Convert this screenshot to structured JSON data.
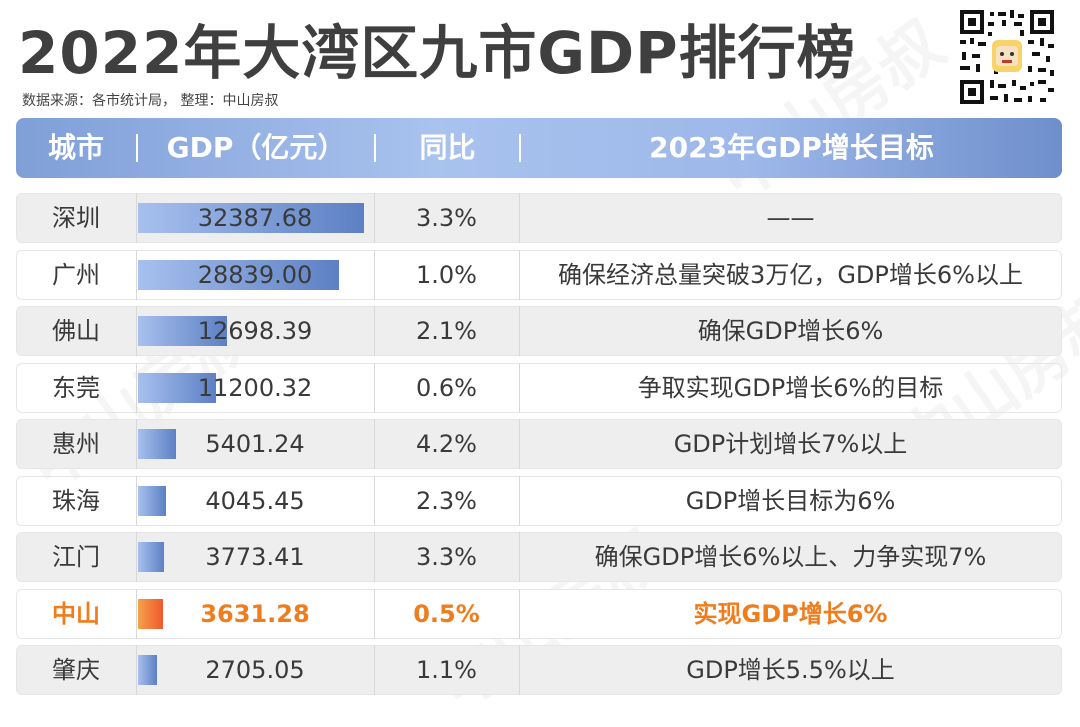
{
  "title": "2022年大湾区九市GDP排行榜",
  "source": "数据来源：各市统计局，  整理：中山房叔",
  "watermark": "中山房叔",
  "qr_label": "QR code",
  "header": {
    "city": "城市",
    "gdp": "GDP（亿元）",
    "yoy": "同比",
    "goal": "2023年GDP增长目标",
    "separator": "|"
  },
  "chart_data": {
    "type": "bar",
    "title": "2022年大湾区九市GDP排行榜",
    "xlabel": "城市",
    "ylabel": "GDP（亿元）",
    "categories": [
      "深圳",
      "广州",
      "佛山",
      "东莞",
      "惠州",
      "珠海",
      "江门",
      "中山",
      "肇庆"
    ],
    "values": [
      32387.68,
      28839.0,
      12698.39,
      11200.32,
      5401.24,
      4045.45,
      3773.41,
      3631.28,
      2705.05
    ],
    "value_labels": [
      "32387.68",
      "28839.00",
      "12698.39",
      "11200.32",
      "5401.24",
      "4045.45",
      "3773.41",
      "3631.28",
      "2705.05"
    ],
    "yoy": [
      "3.3%",
      "1.0%",
      "2.1%",
      "0.6%",
      "4.2%",
      "2.3%",
      "3.3%",
      "0.5%",
      "1.1%"
    ],
    "goals": [
      "——",
      "确保经济总量突破3万亿，GDP增长6%以上",
      "确保GDP增长6%",
      "争取实现GDP增长6%的目标",
      "GDP计划增长7%以上",
      "GDP增长目标为6%",
      "确保GDP增长6%以上、力争实现7%",
      "实现GDP增长6%",
      "GDP增长5.5%以上"
    ],
    "ylim": [
      0,
      32387.68
    ],
    "highlight": "中山",
    "highlight_color": "#f07c1c"
  }
}
